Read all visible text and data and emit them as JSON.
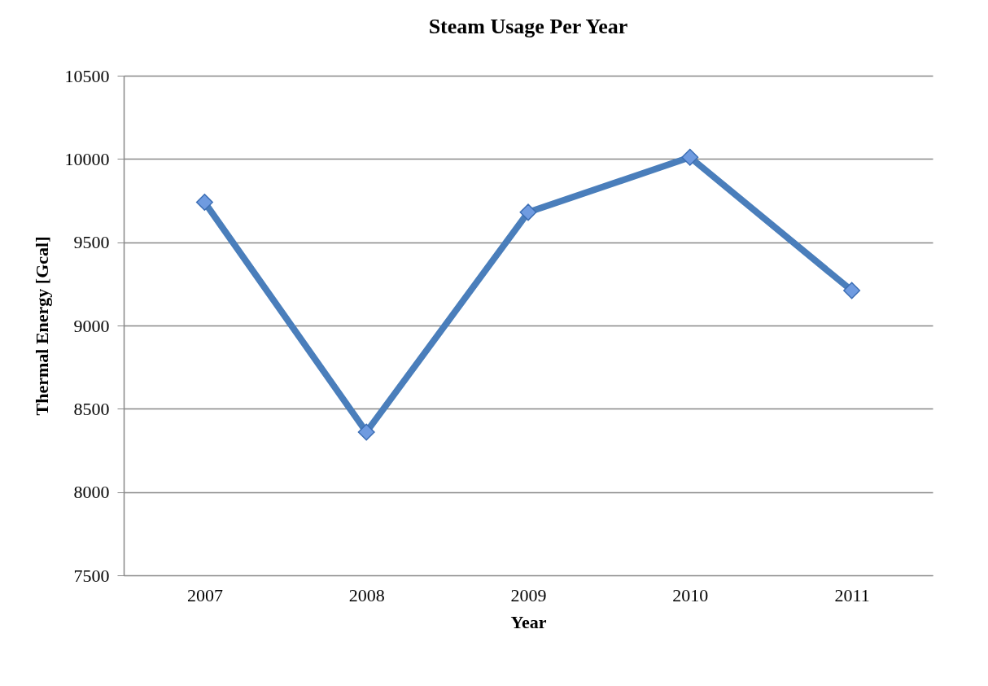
{
  "chart_data": {
    "type": "line",
    "title": "Steam Usage Per Year",
    "xlabel": "Year",
    "ylabel": "Thermal Energy [Gcal]",
    "categories": [
      "2007",
      "2008",
      "2009",
      "2010",
      "2011"
    ],
    "series": [
      {
        "color": "#4a7ebb",
        "values": [
          9740,
          8360,
          9680,
          10010,
          9210
        ]
      }
    ],
    "ylim": [
      7500,
      10500
    ],
    "yticks": [
      7500,
      8000,
      8500,
      9000,
      9500,
      10000,
      10500
    ],
    "grid": "y",
    "legend": false,
    "marker": "diamond",
    "line_style": "solid"
  }
}
